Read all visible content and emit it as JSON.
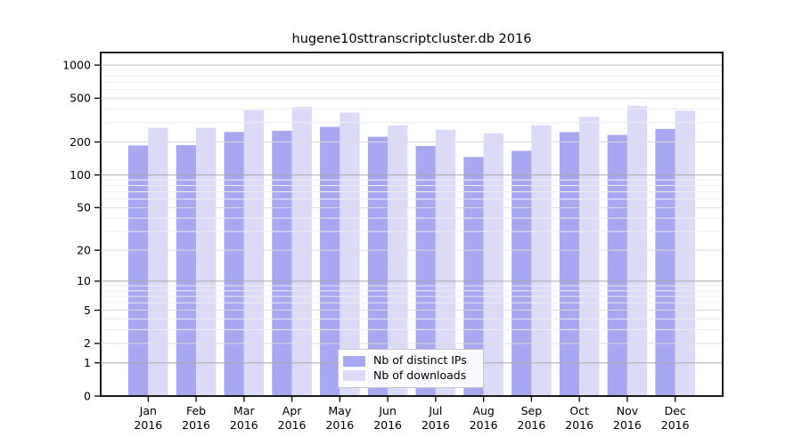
{
  "chart_data": {
    "type": "bar",
    "title": "hugene10sttranscriptcluster.db 2016",
    "categories": [
      "Jan",
      "Feb",
      "Mar",
      "Apr",
      "May",
      "Jun",
      "Jul",
      "Aug",
      "Sep",
      "Oct",
      "Nov",
      "Dec"
    ],
    "category_year_line": "2016",
    "series": [
      {
        "name": "Nb of distinct IPs",
        "color": "#a8a8f2",
        "values": [
          186,
          187,
          247,
          253,
          275,
          223,
          184,
          146,
          166,
          246,
          232,
          263
        ]
      },
      {
        "name": "Nb of downloads",
        "color": "#dbdbf9",
        "values": [
          269,
          269,
          390,
          416,
          370,
          283,
          258,
          240,
          285,
          339,
          426,
          386
        ]
      }
    ],
    "xlabel": "",
    "ylabel": "",
    "y_scale": "log1p",
    "ylim": [
      0,
      1300
    ],
    "y_ticks": [
      0,
      1,
      2,
      5,
      10,
      20,
      50,
      100,
      200,
      500,
      1000
    ],
    "y_minor_gridlines": [
      3,
      4,
      6,
      7,
      8,
      9,
      30,
      40,
      60,
      70,
      80,
      90,
      300,
      400,
      600,
      700,
      800,
      900
    ],
    "grid": "horizontal gridlines drawn over bars",
    "legend_position": "inside-bottom-center"
  },
  "colors": {
    "background": "#ffffff",
    "bar_distinct_ips": "#a8a8f2",
    "bar_downloads": "#dbdbf9",
    "axis": "#000000",
    "tick_label": "#000000",
    "grid_power_of_ten": "#a9a9a9",
    "grid_major": "#dcdcdc",
    "grid_minor": "#ededed",
    "grid_top": "#c0c0c0",
    "legend_border": "#c8c8c8"
  }
}
